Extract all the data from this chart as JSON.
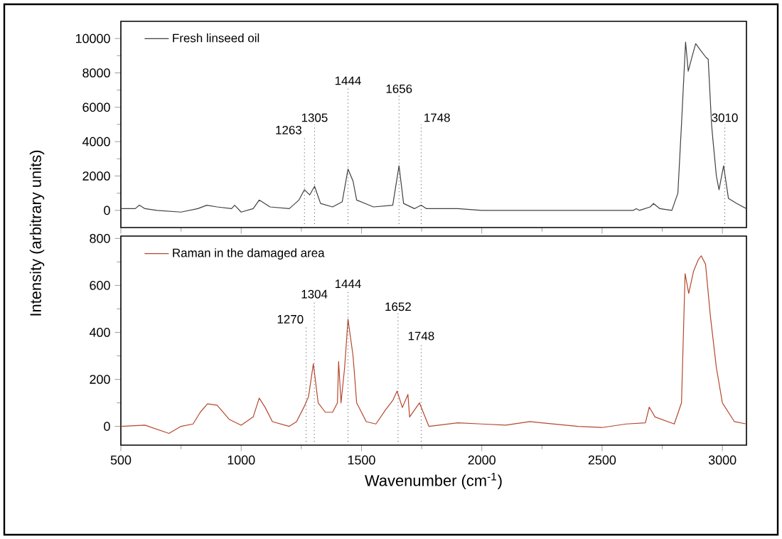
{
  "chart_data": [
    {
      "type": "line",
      "ylabel": "Intensity (arbitrary units)",
      "legend": "top left",
      "tick_labels": "y",
      "xlim": [
        500,
        3100
      ],
      "xticks": [
        500,
        1000,
        1500,
        2000,
        2500,
        3000
      ],
      "ylim": [
        -1000,
        11000
      ],
      "yticks": [
        0,
        2000,
        4000,
        6000,
        8000,
        10000
      ],
      "series": [
        {
          "name": "Fresh linseed oil",
          "color": "#404040",
          "x": [
            500,
            560,
            577,
            600,
            650,
            750,
            820,
            857,
            900,
            960,
            973,
            1000,
            1050,
            1075,
            1120,
            1200,
            1240,
            1263,
            1285,
            1305,
            1330,
            1380,
            1420,
            1444,
            1465,
            1480,
            1550,
            1630,
            1656,
            1675,
            1720,
            1748,
            1770,
            1900,
            2000,
            2200,
            2400,
            2630,
            2642,
            2655,
            2700,
            2714,
            2740,
            2790,
            2815,
            2830,
            2847,
            2858,
            2875,
            2889,
            2910,
            2932,
            2941,
            2955,
            2960,
            2975,
            2986,
            3005,
            3025,
            3060,
            3100
          ],
          "values": [
            100,
            100,
            300,
            100,
            0,
            -100,
            100,
            300,
            200,
            100,
            300,
            -100,
            100,
            600,
            200,
            100,
            600,
            1200,
            900,
            1400,
            400,
            200,
            500,
            2400,
            1700,
            600,
            200,
            300,
            2600,
            400,
            100,
            300,
            100,
            100,
            0,
            0,
            0,
            0,
            100,
            0,
            200,
            400,
            100,
            0,
            1000,
            5000,
            9800,
            8100,
            9000,
            9700,
            9300,
            8900,
            8800,
            5000,
            4200,
            2000,
            1200,
            2600,
            700,
            400,
            100
          ]
        }
      ],
      "ref_lines": [
        {
          "axis": "x",
          "value": 1263,
          "label": "1263",
          "line_style": "dotted",
          "color": "#404040"
        },
        {
          "axis": "x",
          "value": 1305,
          "label": "1305",
          "line_style": "dotted",
          "color": "#404040"
        },
        {
          "axis": "x",
          "value": 1444,
          "label": "1444",
          "line_style": "dotted",
          "color": "#404040"
        },
        {
          "axis": "x",
          "value": 1656,
          "label": "1656",
          "line_style": "dotted",
          "color": "#404040"
        },
        {
          "axis": "x",
          "value": 1748,
          "label": "1748",
          "line_style": "dotted",
          "color": "#404040"
        },
        {
          "axis": "x",
          "value": 3010,
          "label": "3010",
          "line_style": "dotted",
          "color": "#404040"
        }
      ]
    },
    {
      "type": "line",
      "xlabel": "Wavenumber (cm$^{-1}$)",
      "legend": "top left",
      "xlim": [
        500,
        3100
      ],
      "xticks": [
        500,
        1000,
        1500,
        2000,
        2500,
        3000
      ],
      "ylim": [
        -80,
        810
      ],
      "yticks": [
        0,
        200,
        400,
        600,
        800
      ],
      "series": [
        {
          "name": "Raman in the damaged area",
          "color": "#b5472d",
          "x": [
            500,
            600,
            700,
            750,
            800,
            830,
            860,
            900,
            950,
            1000,
            1050,
            1075,
            1100,
            1130,
            1200,
            1230,
            1260,
            1280,
            1300,
            1320,
            1350,
            1380,
            1400,
            1405,
            1415,
            1430,
            1444,
            1465,
            1480,
            1520,
            1560,
            1600,
            1630,
            1648,
            1670,
            1693,
            1700,
            1741,
            1780,
            1900,
            2000,
            2100,
            2200,
            2300,
            2400,
            2500,
            2600,
            2680,
            2696,
            2720,
            2800,
            2830,
            2845,
            2860,
            2880,
            2900,
            2912,
            2930,
            2950,
            2975,
            3000,
            3050,
            3100
          ],
          "values": [
            0,
            5,
            -30,
            0,
            10,
            60,
            96,
            90,
            30,
            5,
            40,
            120,
            80,
            20,
            0,
            20,
            80,
            126,
            266,
            100,
            60,
            60,
            100,
            276,
            100,
            250,
            456,
            300,
            100,
            20,
            10,
            70,
            110,
            150,
            80,
            136,
            40,
            100,
            0,
            15,
            10,
            5,
            20,
            10,
            0,
            -5,
            10,
            15,
            82,
            40,
            10,
            100,
            650,
            566,
            660,
            710,
            726,
            690,
            470,
            250,
            100,
            20,
            10
          ]
        }
      ],
      "ref_lines": [
        {
          "axis": "x",
          "value": 1270,
          "label": "1270",
          "line_style": "dotted",
          "color": "#404040"
        },
        {
          "axis": "x",
          "value": 1304,
          "label": "1304",
          "line_style": "dotted",
          "color": "#404040"
        },
        {
          "axis": "x",
          "value": 1444,
          "label": "1444",
          "line_style": "dotted",
          "color": "#404040"
        },
        {
          "axis": "x",
          "value": 1652,
          "label": "1652",
          "line_style": "dotted",
          "color": "#404040"
        },
        {
          "axis": "x",
          "value": 1748,
          "label": "1748",
          "line_style": "dotted",
          "color": "#404040"
        }
      ]
    }
  ]
}
